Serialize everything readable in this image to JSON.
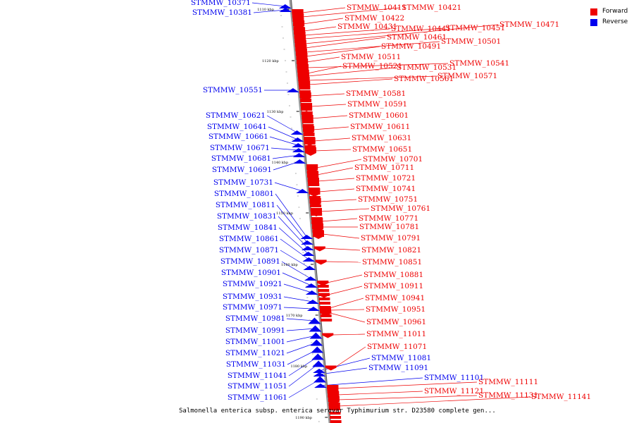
{
  "title": "Salmonella enterica subsp. enterica serovar Typhimurium str. D23580 complete gen...",
  "legend": [
    {
      "label": "Forward",
      "color": "#ee0000"
    },
    {
      "label": "Reverse",
      "color": "#0000ee"
    }
  ],
  "colors": {
    "forward": "#ee0000",
    "reverse": "#0000ee",
    "backbone": "#777777"
  },
  "ticks": [
    "1110 kbp",
    "1120 kbp",
    "1130 kbp",
    "1140 kbp",
    "1150 kbp",
    "1160 kbp",
    "1170 kbp",
    "1180 kbp",
    "1190 kbp"
  ],
  "reverse_genes": [
    "STMMW_10371",
    "STMMW_10381",
    "STMMW_10551",
    "STMMW_10621",
    "STMMW_10641",
    "STMMW_10661",
    "STMMW_10671",
    "STMMW_10681",
    "STMMW_10691",
    "STMMW_10731",
    "STMMW_10801",
    "STMMW_10811",
    "STMMW_10831",
    "STMMW_10841",
    "STMMW_10861",
    "STMMW_10871",
    "STMMW_10891",
    "STMMW_10901",
    "STMMW_10921",
    "STMMW_10931",
    "STMMW_10971",
    "STMMW_10981",
    "STMMW_10991",
    "STMMW_11001",
    "STMMW_11021",
    "STMMW_11031",
    "STMMW_11041",
    "STMMW_11051",
    "STMMW_11061",
    "STMMW_11081",
    "STMMW_11091",
    "STMMW_11101"
  ],
  "forward_genes": [
    "STMMW_10411",
    "STMMW_10421",
    "STMMW_10422",
    "STMMW_10431",
    "STMMW_10441",
    "STMMW_10451",
    "STMMW_10471",
    "STMMW_10461",
    "STMMW_10501",
    "STMMW_10491",
    "STMMW_10511",
    "STMMW_10541",
    "STMMW_10521",
    "STMMW_10531",
    "STMMW_10571",
    "STMMW_10561",
    "STMMW_10581",
    "STMMW_10591",
    "STMMW_10601",
    "STMMW_10611",
    "STMMW_10631",
    "STMMW_10651",
    "STMMW_10701",
    "STMMW_10711",
    "STMMW_10721",
    "STMMW_10741",
    "STMMW_10751",
    "STMMW_10761",
    "STMMW_10771",
    "STMMW_10781",
    "STMMW_10791",
    "STMMW_10821",
    "STMMW_10851",
    "STMMW_10881",
    "STMMW_10911",
    "STMMW_10941",
    "STMMW_10951",
    "STMMW_10961",
    "STMMW_11011",
    "STMMW_11071",
    "STMMW_11111",
    "STMMW_11121",
    "STMMW_11131",
    "STMMW_11141"
  ]
}
